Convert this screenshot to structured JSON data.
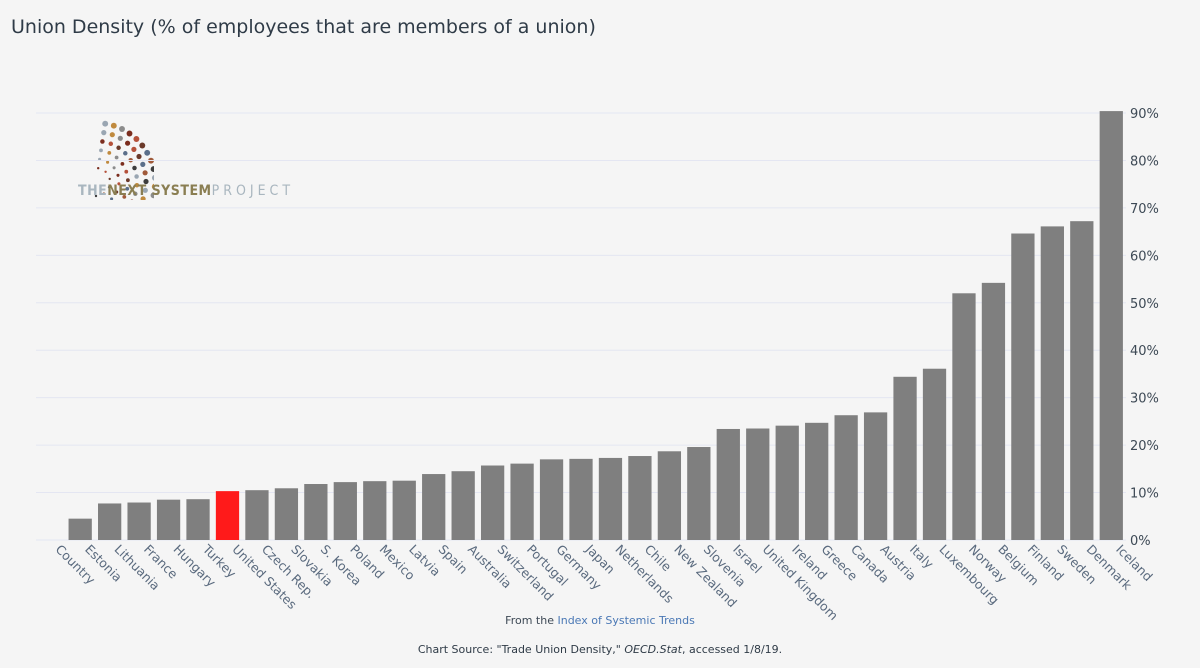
{
  "title": "Union Density (% of employees that are members of a union)",
  "logo": {
    "word1": "THE",
    "word2": "NEXT SYSTEM",
    "word3": "PROJECT"
  },
  "footer": {
    "from_prefix": "From the",
    "from_link": "Index of Systemic Trends",
    "source_prefix": "Chart Source:  \"Trade Union Density,\"",
    "source_italic": "OECD.Stat",
    "source_suffix": ", accessed 1/8/19."
  },
  "colors": {
    "bar": "#7f7f7f",
    "highlight": "#ff1a1a"
  },
  "chart_data": {
    "type": "bar",
    "categories": [
      "Country",
      "Estonia",
      "Lithuania",
      "France",
      "Hungary",
      "Turkey",
      "United States",
      "Czech Rep.",
      "Slovakia",
      "S. Korea",
      "Poland",
      "Mexico",
      "Latvia",
      "Spain",
      "Australia",
      "Switzerland",
      "Portugal",
      "Germany",
      "Japan",
      "Netherlands",
      "Chile",
      "New Zealand",
      "Slovenia",
      "Israel",
      "United Kingdom",
      "Ireland",
      "Greece",
      "Canada",
      "Austria",
      "Italy",
      "Luxembourg",
      "Norway",
      "Belgium",
      "Finland",
      "Sweden",
      "Denmark",
      "Iceland"
    ],
    "values": [
      null,
      4.5,
      7.7,
      7.9,
      8.5,
      8.6,
      10.3,
      10.5,
      10.9,
      11.8,
      12.2,
      12.4,
      12.5,
      13.9,
      14.5,
      15.7,
      16.1,
      17.0,
      17.1,
      17.3,
      17.7,
      18.7,
      19.6,
      23.4,
      23.5,
      24.1,
      24.7,
      26.3,
      26.9,
      34.4,
      36.1,
      52.0,
      54.2,
      64.6,
      66.1,
      67.2,
      90.4
    ],
    "highlight": "United States",
    "ylim": [
      0,
      90
    ],
    "yticks": [
      0,
      10,
      20,
      30,
      40,
      50,
      60,
      70,
      80,
      90
    ],
    "ytick_labels": [
      "0%",
      "10%",
      "20%",
      "30%",
      "40%",
      "50%",
      "60%",
      "70%",
      "80%",
      "90%"
    ],
    "y_axis_position": "right",
    "grid": true
  }
}
